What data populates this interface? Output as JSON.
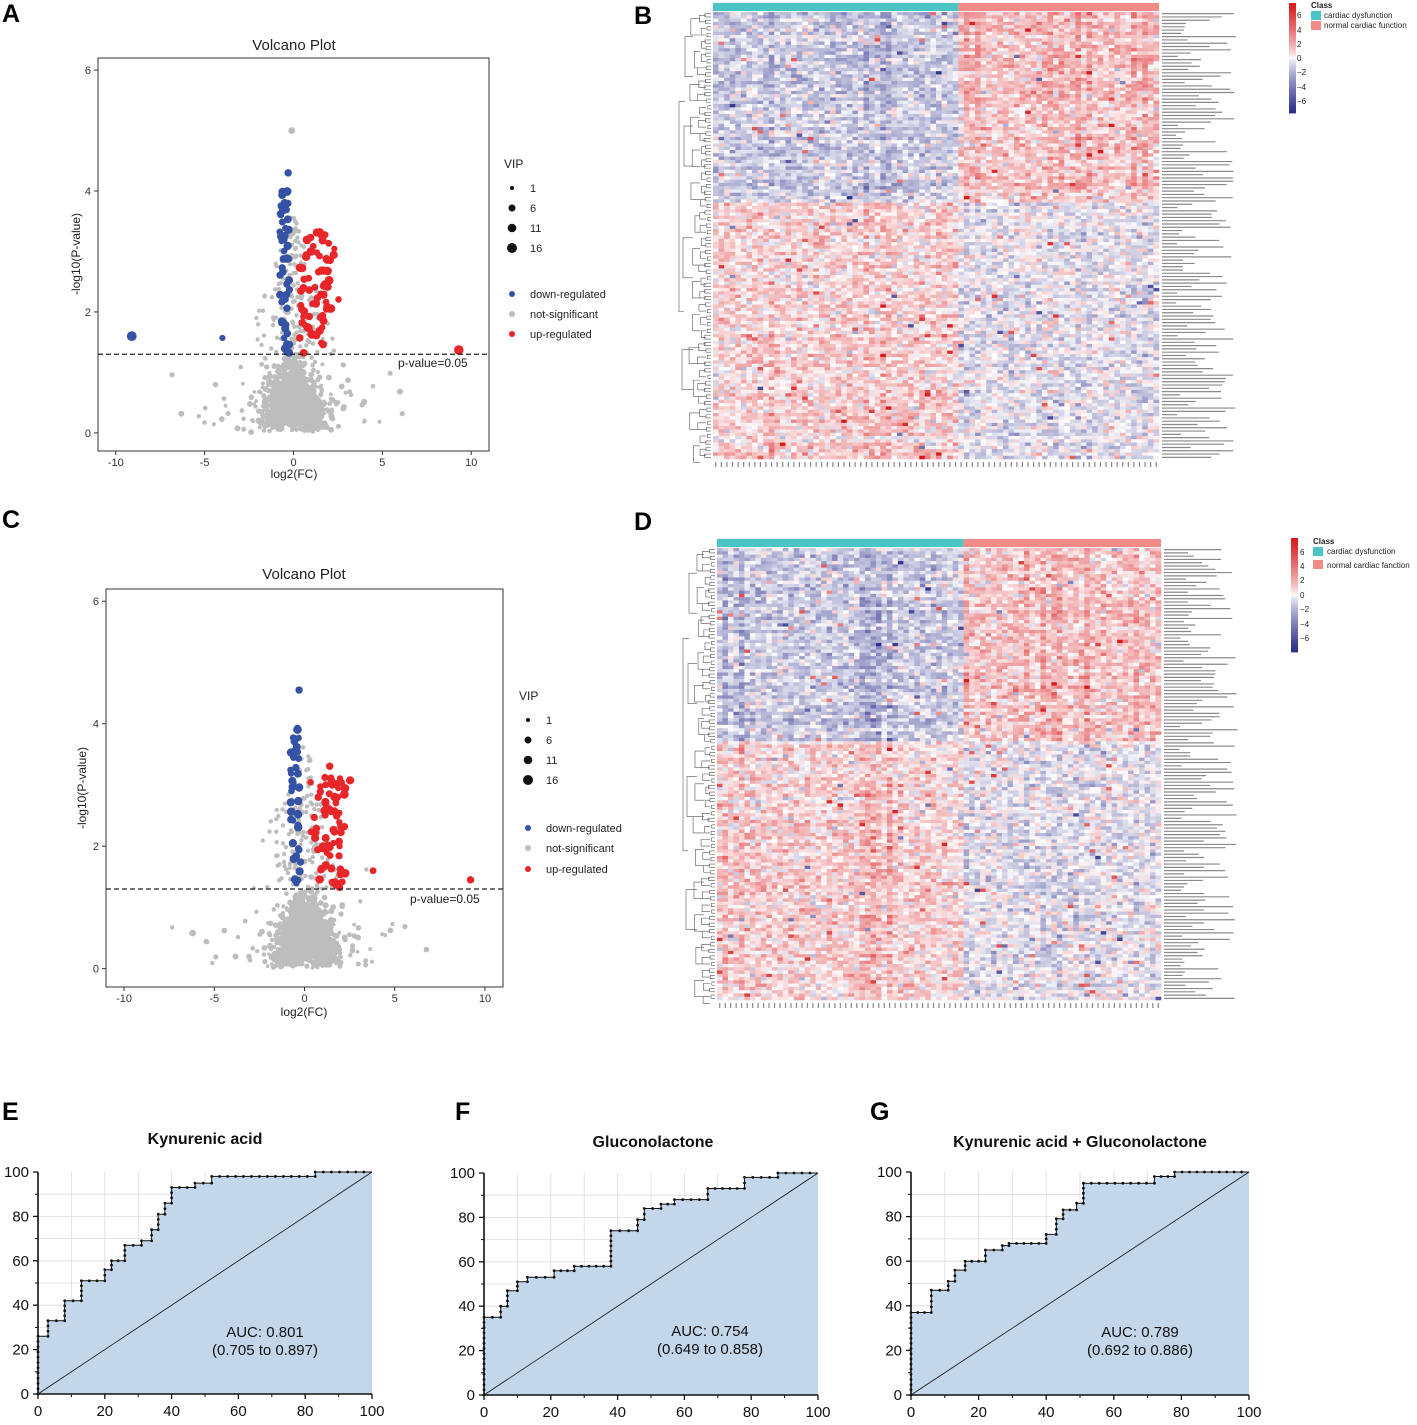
{
  "panels": {
    "A": "A",
    "B": "B",
    "C": "C",
    "D": "D",
    "E": "E",
    "F": "F",
    "G": "G"
  },
  "colors": {
    "down": "#3552a5",
    "ns": "#bdbdbd",
    "up": "#e8262a",
    "cardiac_dysfunction": "#4bc4c8",
    "normal": "#f08c86",
    "roc_fill": "#c3d6ea",
    "hm_high": "#d7191c",
    "hm_low": "#2c2f8a"
  },
  "chart_data": [
    {
      "panel": "A",
      "type": "scatter",
      "title": "Volcano Plot",
      "xlabel": "log2(FC)",
      "ylabel": "-log10(P-value)",
      "xlim": [
        -11,
        11
      ],
      "ylim": [
        -0.3,
        6.2
      ],
      "xticks": [
        "-10",
        "-5",
        "0",
        "5",
        "10"
      ],
      "yticks": [
        "0",
        "2",
        "4",
        "6"
      ],
      "threshold": {
        "y": 1.3,
        "label": "p-value=0.05"
      },
      "legend_title": "VIP",
      "vip_sizes": [
        "1",
        "6",
        "11",
        "16"
      ],
      "legend": [
        "down-regulated",
        "not-significant",
        "up-regulated"
      ],
      "counts": {
        "down": 52,
        "up": 68,
        "ns": 1500
      },
      "special_points": [
        {
          "x": -9.1,
          "y": 1.6,
          "class": "down",
          "vip": 10
        },
        {
          "x": -4.0,
          "y": 1.57,
          "class": "down",
          "vip": 2
        },
        {
          "x": 9.3,
          "y": 1.37,
          "class": "up",
          "vip": 9
        },
        {
          "x": -0.3,
          "y": 4.3,
          "class": "down",
          "vip": 4
        },
        {
          "x": -0.1,
          "y": 5.0,
          "class": "ns",
          "vip": 3
        }
      ]
    },
    {
      "panel": "C",
      "type": "scatter",
      "title": "Volcano Plot",
      "xlabel": "log2(FC)",
      "ylabel": "-log10(P-value)",
      "xlim": [
        -11,
        11
      ],
      "ylim": [
        -0.3,
        6.2
      ],
      "xticks": [
        "-10",
        "-5",
        "0",
        "5",
        "10"
      ],
      "yticks": [
        "0",
        "2",
        "4",
        "6"
      ],
      "threshold": {
        "y": 1.3,
        "label": "p-value=0.05"
      },
      "legend_title": "VIP",
      "vip_sizes": [
        "1",
        "6",
        "11",
        "16"
      ],
      "legend": [
        "down-regulated",
        "not-significant",
        "up-regulated"
      ],
      "counts": {
        "down": 40,
        "up": 70,
        "ns": 1500
      },
      "special_points": [
        {
          "x": 9.2,
          "y": 1.45,
          "class": "up",
          "vip": 4
        },
        {
          "x": -0.3,
          "y": 4.55,
          "class": "down",
          "vip": 4
        },
        {
          "x": 3.8,
          "y": 1.6,
          "class": "up",
          "vip": 3
        },
        {
          "x": -6.2,
          "y": 0.58,
          "class": "ns",
          "vip": 3
        }
      ]
    },
    {
      "panel": "B",
      "type": "heatmap",
      "legend_title": "Class",
      "classes": [
        "cardiac dysfunction",
        "normal cardiac function"
      ],
      "scale_ticks": [
        "6",
        "4",
        "2",
        "0",
        "−2",
        "−4",
        "−6"
      ],
      "rows": 136,
      "cols_dysfunction": 44,
      "cols_normal": 36
    },
    {
      "panel": "D",
      "type": "heatmap",
      "legend_title": "Class",
      "classes": [
        "cardiac dysfunction",
        "normal cardiac fanction"
      ],
      "scale_ticks": [
        "6",
        "4",
        "2",
        "0",
        "−2",
        "−4",
        "−6"
      ],
      "rows": 138,
      "cols_dysfunction": 45,
      "cols_normal": 36
    },
    {
      "panel": "E",
      "type": "line",
      "title": "Kynurenic acid",
      "xlim": [
        0,
        100
      ],
      "ylim": [
        0,
        100
      ],
      "xticks": [
        "0",
        "20",
        "40",
        "60",
        "80",
        "100"
      ],
      "yticks": [
        "0",
        "20",
        "40",
        "60",
        "80",
        "100"
      ],
      "auc": "AUC: 0.801",
      "ci": "(0.705 to 0.897)",
      "roc": [
        [
          0,
          0
        ],
        [
          0,
          26
        ],
        [
          3,
          26
        ],
        [
          3,
          33
        ],
        [
          8,
          33
        ],
        [
          8,
          42
        ],
        [
          13,
          42
        ],
        [
          13,
          51
        ],
        [
          20,
          51
        ],
        [
          20,
          56
        ],
        [
          22,
          56
        ],
        [
          22,
          60
        ],
        [
          26,
          60
        ],
        [
          26,
          67
        ],
        [
          31,
          67
        ],
        [
          31,
          69
        ],
        [
          34,
          69
        ],
        [
          34,
          74
        ],
        [
          36,
          74
        ],
        [
          36,
          81
        ],
        [
          38,
          81
        ],
        [
          38,
          86
        ],
        [
          40,
          86
        ],
        [
          40,
          93
        ],
        [
          47,
          93
        ],
        [
          47,
          95
        ],
        [
          52,
          95
        ],
        [
          52,
          98
        ],
        [
          83,
          98
        ],
        [
          83,
          100
        ],
        [
          100,
          100
        ]
      ]
    },
    {
      "panel": "F",
      "type": "line",
      "title": "Gluconolactone",
      "xlim": [
        0,
        100
      ],
      "ylim": [
        0,
        100
      ],
      "xticks": [
        "0",
        "20",
        "40",
        "60",
        "80",
        "100"
      ],
      "yticks": [
        "0",
        "20",
        "40",
        "60",
        "80",
        "100"
      ],
      "auc": "AUC: 0.754",
      "ci": "(0.649 to 0.858)",
      "roc": [
        [
          0,
          0
        ],
        [
          0,
          35
        ],
        [
          5,
          35
        ],
        [
          5,
          40
        ],
        [
          7,
          40
        ],
        [
          7,
          47
        ],
        [
          10,
          47
        ],
        [
          10,
          51
        ],
        [
          13,
          51
        ],
        [
          13,
          53
        ],
        [
          21,
          53
        ],
        [
          21,
          56
        ],
        [
          27,
          56
        ],
        [
          27,
          58
        ],
        [
          38,
          58
        ],
        [
          38,
          74
        ],
        [
          46,
          74
        ],
        [
          46,
          79
        ],
        [
          48,
          79
        ],
        [
          48,
          84
        ],
        [
          53,
          84
        ],
        [
          53,
          86
        ],
        [
          57,
          86
        ],
        [
          57,
          88
        ],
        [
          67,
          88
        ],
        [
          67,
          93
        ],
        [
          78,
          93
        ],
        [
          78,
          98
        ],
        [
          88,
          98
        ],
        [
          88,
          100
        ],
        [
          100,
          100
        ]
      ]
    },
    {
      "panel": "G",
      "type": "line",
      "title": "Kynurenic acid + Gluconolactone",
      "xlim": [
        0,
        100
      ],
      "ylim": [
        0,
        100
      ],
      "xticks": [
        "0",
        "20",
        "40",
        "60",
        "80",
        "100"
      ],
      "yticks": [
        "0",
        "20",
        "40",
        "60",
        "80",
        "100"
      ],
      "auc": "AUC: 0.789",
      "ci": "(0.692 to 0.886)",
      "roc": [
        [
          0,
          0
        ],
        [
          0,
          37
        ],
        [
          6,
          37
        ],
        [
          6,
          47
        ],
        [
          11,
          47
        ],
        [
          11,
          51
        ],
        [
          13,
          51
        ],
        [
          13,
          56
        ],
        [
          16,
          56
        ],
        [
          16,
          60
        ],
        [
          22,
          60
        ],
        [
          22,
          65
        ],
        [
          27,
          65
        ],
        [
          27,
          67
        ],
        [
          29,
          67
        ],
        [
          29,
          68
        ],
        [
          40,
          68
        ],
        [
          40,
          72
        ],
        [
          43,
          72
        ],
        [
          43,
          79
        ],
        [
          45,
          79
        ],
        [
          45,
          83
        ],
        [
          49,
          83
        ],
        [
          49,
          86
        ],
        [
          51,
          86
        ],
        [
          51,
          95
        ],
        [
          72,
          95
        ],
        [
          72,
          98
        ],
        [
          78,
          98
        ],
        [
          78,
          100
        ],
        [
          100,
          100
        ]
      ]
    }
  ]
}
